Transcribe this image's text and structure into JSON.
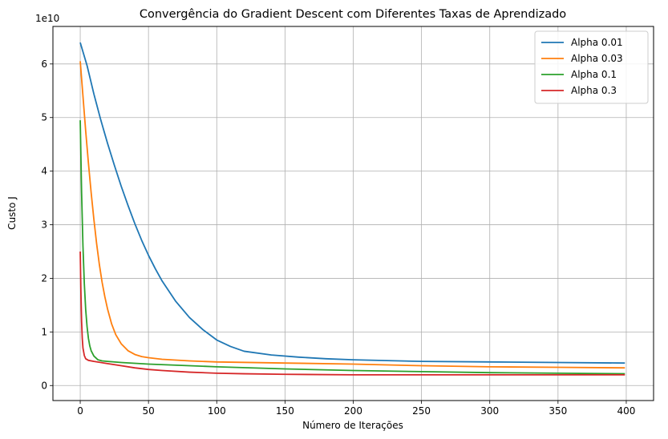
{
  "chart_data": {
    "type": "line",
    "title": "Convergência do Gradient Descent com Diferentes Taxas de Aprendizado",
    "xlabel": "Número de Iterações",
    "ylabel": "Custo J",
    "y_multiplier_label": "1e10",
    "xlim": [
      -20,
      420
    ],
    "ylim": [
      -0.28,
      6.7
    ],
    "x_ticks": [
      0,
      50,
      100,
      150,
      200,
      250,
      300,
      350,
      400
    ],
    "y_ticks": [
      0,
      1,
      2,
      3,
      4,
      5,
      6
    ],
    "grid": true,
    "legend_position": "top-right",
    "series": [
      {
        "name": "Alpha 0.01",
        "color": "#1f77b4",
        "points": [
          [
            0,
            6.4
          ],
          [
            5,
            5.97
          ],
          [
            10,
            5.44
          ],
          [
            15,
            4.96
          ],
          [
            20,
            4.52
          ],
          [
            25,
            4.11
          ],
          [
            30,
            3.72
          ],
          [
            35,
            3.36
          ],
          [
            40,
            3.02
          ],
          [
            45,
            2.71
          ],
          [
            50,
            2.43
          ],
          [
            55,
            2.18
          ],
          [
            60,
            1.95
          ],
          [
            70,
            1.57
          ],
          [
            80,
            1.27
          ],
          [
            90,
            1.04
          ],
          [
            100,
            0.85
          ],
          [
            110,
            0.73
          ],
          [
            120,
            0.64
          ],
          [
            140,
            0.57
          ],
          [
            160,
            0.53
          ],
          [
            180,
            0.5
          ],
          [
            200,
            0.48
          ],
          [
            250,
            0.45
          ],
          [
            300,
            0.44
          ],
          [
            350,
            0.43
          ],
          [
            399,
            0.42
          ]
        ]
      },
      {
        "name": "Alpha 0.03",
        "color": "#ff7f0e",
        "points": [
          [
            0,
            6.05
          ],
          [
            2,
            5.4
          ],
          [
            4,
            4.75
          ],
          [
            6,
            4.15
          ],
          [
            8,
            3.6
          ],
          [
            10,
            3.1
          ],
          [
            12,
            2.65
          ],
          [
            14,
            2.26
          ],
          [
            16,
            1.93
          ],
          [
            18,
            1.66
          ],
          [
            20,
            1.43
          ],
          [
            23,
            1.15
          ],
          [
            26,
            0.95
          ],
          [
            30,
            0.78
          ],
          [
            35,
            0.65
          ],
          [
            40,
            0.58
          ],
          [
            45,
            0.54
          ],
          [
            50,
            0.52
          ],
          [
            60,
            0.49
          ],
          [
            80,
            0.46
          ],
          [
            100,
            0.44
          ],
          [
            150,
            0.42
          ],
          [
            200,
            0.4
          ],
          [
            250,
            0.37
          ],
          [
            300,
            0.35
          ],
          [
            350,
            0.34
          ],
          [
            399,
            0.33
          ]
        ]
      },
      {
        "name": "Alpha 0.1",
        "color": "#2ca02c",
        "points": [
          [
            0,
            4.95
          ],
          [
            1,
            3.6
          ],
          [
            2,
            2.6
          ],
          [
            3,
            1.9
          ],
          [
            4,
            1.42
          ],
          [
            5,
            1.1
          ],
          [
            6,
            0.88
          ],
          [
            7,
            0.74
          ],
          [
            8,
            0.65
          ],
          [
            10,
            0.55
          ],
          [
            13,
            0.48
          ],
          [
            16,
            0.46
          ],
          [
            20,
            0.45
          ],
          [
            30,
            0.43
          ],
          [
            50,
            0.4
          ],
          [
            100,
            0.35
          ],
          [
            150,
            0.31
          ],
          [
            200,
            0.28
          ],
          [
            250,
            0.26
          ],
          [
            300,
            0.24
          ],
          [
            350,
            0.23
          ],
          [
            399,
            0.22
          ]
        ]
      },
      {
        "name": "Alpha 0.3",
        "color": "#d62728",
        "points": [
          [
            0,
            2.5
          ],
          [
            0.5,
            1.75
          ],
          [
            1,
            1.2
          ],
          [
            1.5,
            0.88
          ],
          [
            2,
            0.7
          ],
          [
            3,
            0.56
          ],
          [
            4,
            0.5
          ],
          [
            6,
            0.47
          ],
          [
            10,
            0.45
          ],
          [
            20,
            0.41
          ],
          [
            30,
            0.37
          ],
          [
            40,
            0.33
          ],
          [
            50,
            0.3
          ],
          [
            60,
            0.28
          ],
          [
            80,
            0.25
          ],
          [
            100,
            0.23
          ],
          [
            120,
            0.22
          ],
          [
            150,
            0.21
          ],
          [
            200,
            0.2
          ],
          [
            250,
            0.2
          ],
          [
            300,
            0.2
          ],
          [
            350,
            0.2
          ],
          [
            399,
            0.2
          ]
        ]
      }
    ]
  }
}
